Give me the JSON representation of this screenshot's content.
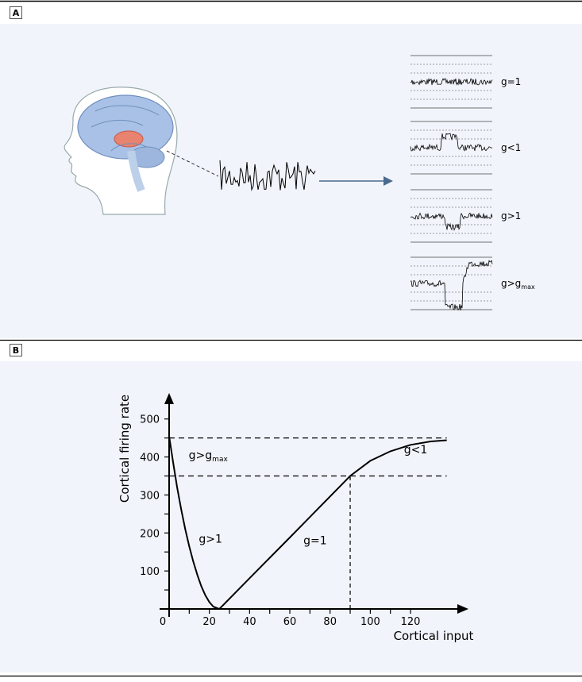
{
  "panel_a": {
    "label": "A",
    "traces": [
      {
        "label": {
          "main": "g=1"
        }
      },
      {
        "label": {
          "main": "g<1"
        }
      },
      {
        "label": {
          "main": "g>1"
        }
      },
      {
        "label": {
          "main": "g>g",
          "sub": "max"
        }
      }
    ]
  },
  "panel_b": {
    "label": "B"
  },
  "chart_data": {
    "type": "line",
    "x_label": "Cortical input",
    "y_label": "Cortical firing rate",
    "x": [
      0,
      2,
      4,
      6,
      8,
      10,
      12,
      14,
      16,
      18,
      20,
      22,
      25,
      40,
      60,
      80,
      90,
      100,
      110,
      120,
      130,
      138
    ],
    "series": [
      {
        "color": "#000000",
        "values": [
          455,
          385,
          320,
          262,
          210,
          165,
          125,
          90,
          60,
          36,
          18,
          6,
          0,
          81,
          188,
          296,
          350,
          390,
          415,
          432,
          441,
          444
        ]
      }
    ],
    "xlim": [
      0,
      148
    ],
    "ylim": [
      0,
      560
    ],
    "xticks": [
      0,
      20,
      40,
      60,
      80,
      100,
      120
    ],
    "yticks": [
      100,
      200,
      300,
      400,
      500
    ],
    "y_minor_ticks": [
      50,
      150,
      250,
      350,
      450
    ],
    "x_minor_ticks": [
      10,
      30,
      50,
      70,
      90,
      110
    ],
    "reference_hlines": [
      450,
      350
    ],
    "reference_vline": 90,
    "annotations": [
      {
        "text": "g>g",
        "sub": "max",
        "x": 5,
        "y": 395
      },
      {
        "text": "g>1",
        "x": 10,
        "y": 175
      },
      {
        "text": "g=1",
        "x": 62,
        "y": 170
      },
      {
        "text": "g<1",
        "x": 112,
        "y": 410
      }
    ]
  }
}
